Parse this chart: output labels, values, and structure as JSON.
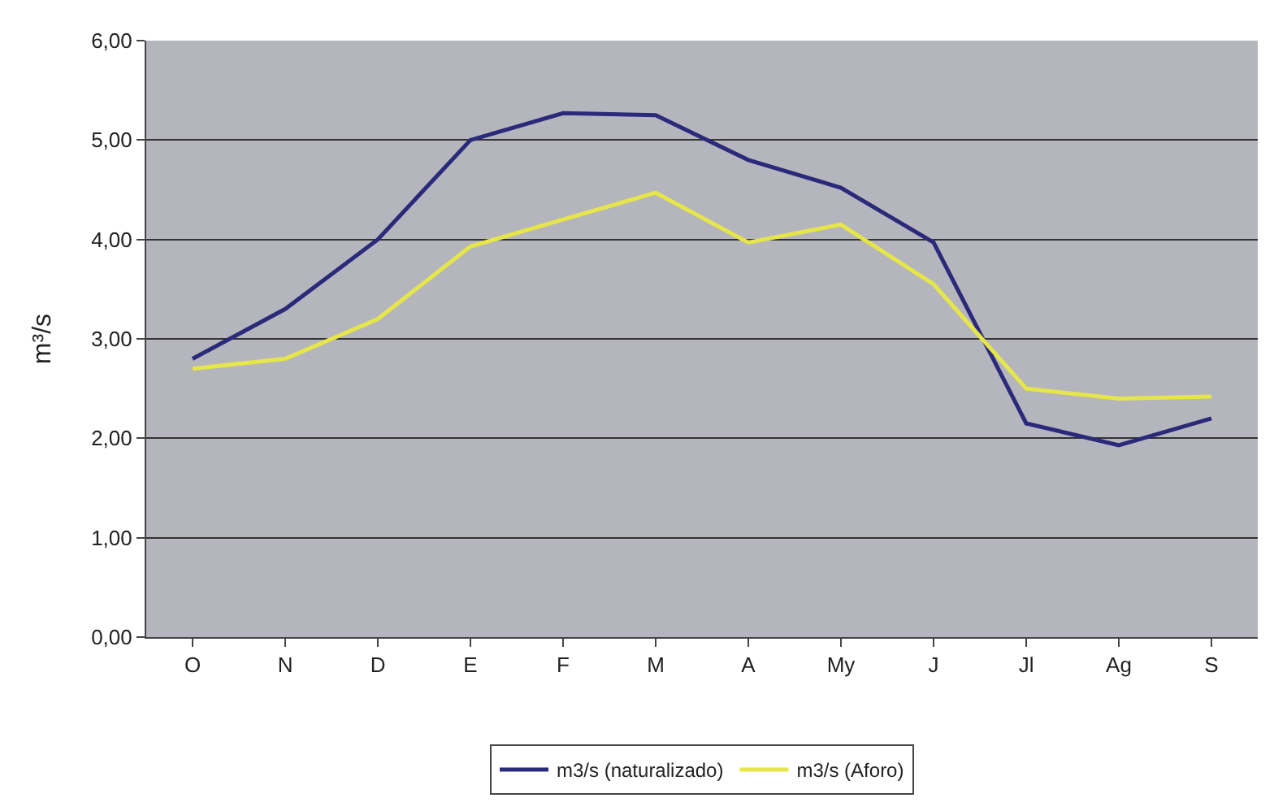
{
  "chart_data": {
    "type": "line",
    "ylabel": "m³/s",
    "categories": [
      "O",
      "N",
      "D",
      "E",
      "F",
      "M",
      "A",
      "My",
      "J",
      "Jl",
      "Ag",
      "S"
    ],
    "series": [
      {
        "name": "m3/s (naturalizado)",
        "color": "#2b2a7a",
        "values": [
          2.8,
          3.3,
          4.0,
          5.0,
          5.27,
          5.25,
          4.8,
          4.52,
          3.97,
          2.15,
          1.93,
          2.2
        ]
      },
      {
        "name": "m3/s (Aforo)",
        "color": "#e6e64a",
        "values": [
          2.7,
          2.8,
          3.2,
          3.93,
          4.2,
          4.47,
          3.97,
          4.15,
          3.55,
          2.5,
          2.4,
          2.42
        ]
      }
    ],
    "ylim": [
      0,
      6
    ],
    "yticks": [
      {
        "value": 0,
        "label": "0,00"
      },
      {
        "value": 1,
        "label": "1,00"
      },
      {
        "value": 2,
        "label": "2,00"
      },
      {
        "value": 3,
        "label": "3,00"
      },
      {
        "value": 4,
        "label": "4,00"
      },
      {
        "value": 5,
        "label": "5,00"
      },
      {
        "value": 6,
        "label": "6,00"
      }
    ],
    "grid": "y",
    "legend": "bottom",
    "marker": "none",
    "line_style": "solid"
  }
}
